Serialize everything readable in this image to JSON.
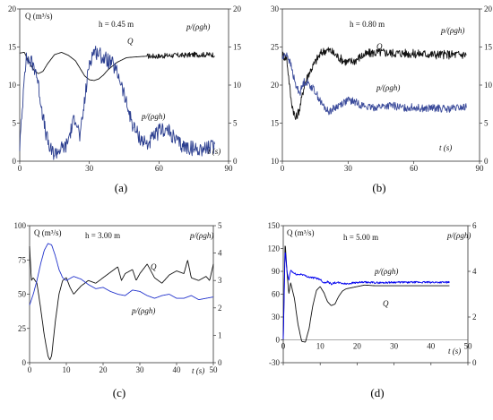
{
  "chart_data": [
    {
      "type": "line",
      "caption": "(a)",
      "annotation": "h = 0.45 m",
      "left_label": "Q (m³/s)",
      "right_label": "p/(ρgh)",
      "series_labels": {
        "Q": "Q",
        "p": "p/(ρgh)"
      },
      "time_label": "t (s)",
      "xlim": [
        0,
        90
      ],
      "xticks": [
        0,
        30,
        60,
        90
      ],
      "ylim": [
        0,
        20
      ],
      "yticks": [
        0,
        5,
        10,
        15,
        20
      ],
      "y2lim": [
        0,
        20
      ],
      "y2ticks": [
        0,
        5,
        10,
        15,
        20
      ],
      "series": [
        {
          "key": "Q",
          "axis": "left",
          "color": "#111111",
          "x": [
            0,
            2,
            4,
            6,
            8,
            10,
            12,
            15,
            18,
            21,
            24,
            26,
            28,
            30,
            32,
            34,
            36,
            38,
            42,
            46,
            50,
            55,
            60,
            65,
            70,
            75,
            80,
            84
          ],
          "y": [
            14.2,
            14.3,
            13.0,
            12.0,
            11.5,
            11.8,
            12.8,
            14.0,
            14.3,
            13.9,
            13.2,
            12.2,
            11.2,
            10.7,
            10.6,
            10.8,
            11.3,
            12.0,
            13.0,
            13.6,
            13.7,
            13.8,
            13.8,
            13.9,
            13.9,
            14.0,
            14.0,
            14.0
          ],
          "noise": 0.25,
          "noise_from": 55,
          "noise_amp": 0.35
        },
        {
          "key": "p",
          "axis": "right",
          "color": "#2a3d8f",
          "x": [
            0,
            1,
            2,
            3,
            5,
            7,
            9,
            11,
            13,
            15,
            17,
            20,
            22,
            24,
            26,
            28,
            30,
            32,
            34,
            36,
            38,
            40,
            43,
            46,
            49,
            52,
            55,
            58,
            61,
            64,
            67,
            70,
            73,
            76,
            80,
            84
          ],
          "y": [
            2.0,
            6.0,
            12.0,
            13.5,
            13.0,
            12.0,
            8.0,
            4.0,
            1.5,
            1.0,
            1.5,
            2.0,
            4.0,
            6.0,
            3.0,
            8.0,
            13.0,
            14.5,
            14.2,
            13.6,
            13.2,
            12.7,
            11.0,
            7.5,
            4.5,
            3.0,
            2.2,
            3.2,
            4.2,
            4.0,
            2.8,
            2.0,
            1.8,
            1.6,
            1.7,
            1.9
          ],
          "noise": 1.0,
          "noise_from": 0
        }
      ]
    },
    {
      "type": "line",
      "caption": "(b)",
      "annotation": "h = 0.80 m",
      "left_label": "",
      "right_label": "p/(ρgh)",
      "series_labels": {
        "Q": "Q",
        "p": "p/(ρgh)"
      },
      "time_label": "t (s)",
      "xlim": [
        0,
        90
      ],
      "xticks": [
        0,
        30,
        60,
        90
      ],
      "ylim": [
        10,
        30
      ],
      "yticks": [
        10,
        15,
        20,
        25,
        30
      ],
      "y2lim": [
        0,
        20
      ],
      "y2ticks": [
        0,
        5,
        10,
        15,
        20
      ],
      "series": [
        {
          "key": "Q",
          "axis": "left",
          "color": "#111111",
          "x": [
            0,
            2,
            4,
            6,
            8,
            10,
            12,
            14,
            16,
            18,
            20,
            22,
            25,
            28,
            30,
            33,
            36,
            40,
            45,
            50,
            55,
            60,
            65,
            70,
            75,
            80,
            84
          ],
          "y": [
            24.0,
            23.5,
            18.0,
            15.5,
            17.0,
            20.0,
            21.5,
            22.5,
            23.5,
            24.3,
            24.6,
            24.5,
            23.8,
            23.2,
            23.0,
            23.2,
            23.8,
            24.2,
            24.3,
            24.2,
            24.2,
            24.1,
            24.1,
            24.0,
            24.0,
            24.0,
            24.0
          ],
          "noise": 0.6,
          "noise_from": 0
        },
        {
          "key": "p",
          "axis": "right",
          "color": "#3a4a9a",
          "x": [
            0,
            2,
            4,
            6,
            8,
            10,
            12,
            15,
            18,
            21,
            24,
            27,
            30,
            33,
            36,
            40,
            45,
            50,
            55,
            60,
            65,
            70,
            75,
            80,
            84
          ],
          "y": [
            13.5,
            14.2,
            12.5,
            10.0,
            9.0,
            10.5,
            10.2,
            9.2,
            7.5,
            6.5,
            7.0,
            7.6,
            8.0,
            7.8,
            7.4,
            7.0,
            7.2,
            7.3,
            7.0,
            7.1,
            6.9,
            7.0,
            6.8,
            7.0,
            7.1
          ],
          "noise": 0.5,
          "noise_from": 0
        }
      ]
    },
    {
      "type": "line",
      "caption": "(c)",
      "annotation": "h = 3.00 m",
      "left_label": "Q (m³/s)",
      "right_label": "p/(ρgh)",
      "series_labels": {
        "Q": "Q",
        "p": "p/(ρgh)"
      },
      "time_label": "t (s)",
      "xlim": [
        0,
        50
      ],
      "xticks": [
        0,
        10,
        20,
        30,
        40,
        50
      ],
      "ylim": [
        0,
        100
      ],
      "yticks": [
        0,
        25,
        50,
        75,
        100
      ],
      "y2lim": [
        0,
        5
      ],
      "y2ticks": [
        0,
        1,
        2,
        3,
        4,
        5
      ],
      "series": [
        {
          "key": "Q",
          "axis": "left",
          "color": "#111111",
          "x": [
            0,
            0.5,
            1,
            2,
            3,
            4,
            5,
            5.5,
            6,
            7,
            8,
            9,
            10,
            11,
            12,
            14,
            16,
            18,
            20,
            22,
            24,
            25,
            26,
            28,
            29,
            30,
            32,
            34,
            36,
            38,
            40,
            42,
            43,
            44,
            46,
            48,
            49,
            50
          ],
          "y": [
            85,
            60,
            62,
            58,
            40,
            20,
            5,
            2,
            5,
            30,
            50,
            60,
            62,
            55,
            50,
            56,
            60,
            58,
            62,
            66,
            70,
            60,
            65,
            68,
            60,
            65,
            72,
            62,
            58,
            64,
            67,
            65,
            75,
            62,
            60,
            63,
            60,
            72
          ],
          "noise": 0,
          "noise_from": 0
        },
        {
          "key": "p",
          "axis": "right",
          "color": "#2233cc",
          "x": [
            0,
            1,
            2,
            3,
            4,
            5,
            6,
            7,
            8,
            9,
            10,
            12,
            14,
            16,
            18,
            20,
            22,
            24,
            26,
            28,
            30,
            32,
            34,
            36,
            38,
            40,
            42,
            44,
            46,
            48,
            50
          ],
          "y": [
            2.1,
            2.5,
            3.0,
            3.6,
            4.1,
            4.35,
            4.3,
            3.9,
            3.4,
            3.1,
            3.0,
            3.15,
            3.05,
            2.85,
            2.7,
            2.75,
            2.6,
            2.5,
            2.45,
            2.65,
            2.6,
            2.45,
            2.35,
            2.45,
            2.5,
            2.35,
            2.35,
            2.45,
            2.3,
            2.35,
            2.4
          ],
          "noise": 0,
          "noise_from": 0
        }
      ]
    },
    {
      "type": "line",
      "caption": "(d)",
      "annotation": "h = 5.00 m",
      "left_label": "Q (m³/s)",
      "right_label": "p/(ρgh)",
      "series_labels": {
        "Q": "Q",
        "p": "p/(ρgh)"
      },
      "time_label": "t (s)",
      "xlim": [
        0,
        50
      ],
      "xticks": [
        0,
        10,
        20,
        30,
        40,
        50
      ],
      "ylim": [
        -30,
        150
      ],
      "yticks": [
        -30,
        0,
        30,
        60,
        90,
        120,
        150
      ],
      "y2lim": [
        0,
        6
      ],
      "y2ticks": [
        0,
        2,
        4,
        6
      ],
      "series": [
        {
          "key": "Q",
          "axis": "left",
          "color": "#111111",
          "x": [
            0,
            0.5,
            1,
            1.5,
            2,
            3,
            4,
            5,
            6,
            7,
            8,
            9,
            10,
            11,
            12,
            13,
            14,
            15,
            16,
            17,
            18,
            20,
            22,
            25,
            30,
            35,
            40,
            45
          ],
          "y": [
            0,
            130,
            90,
            60,
            75,
            55,
            20,
            -2,
            -3,
            15,
            45,
            65,
            70,
            62,
            50,
            45,
            47,
            57,
            64,
            67,
            68,
            70,
            72,
            71,
            71,
            71,
            71,
            71
          ],
          "noise": 0,
          "noise_from": 0
        },
        {
          "key": "p",
          "axis": "right",
          "color": "#0000ee",
          "x": [
            0,
            0.5,
            1,
            1.5,
            2,
            3,
            4,
            5,
            6,
            7,
            8,
            9,
            10,
            11,
            12,
            13,
            14,
            15,
            17,
            19,
            22,
            26,
            30,
            35,
            40,
            45
          ],
          "y": [
            1.0,
            5.0,
            4.0,
            3.6,
            4.05,
            3.9,
            3.85,
            3.88,
            3.8,
            3.75,
            3.72,
            3.7,
            3.65,
            3.5,
            3.55,
            3.45,
            3.5,
            3.5,
            3.45,
            3.5,
            3.52,
            3.5,
            3.52,
            3.52,
            3.52,
            3.52
          ],
          "noise": 0.04,
          "noise_from": 0
        }
      ]
    }
  ]
}
